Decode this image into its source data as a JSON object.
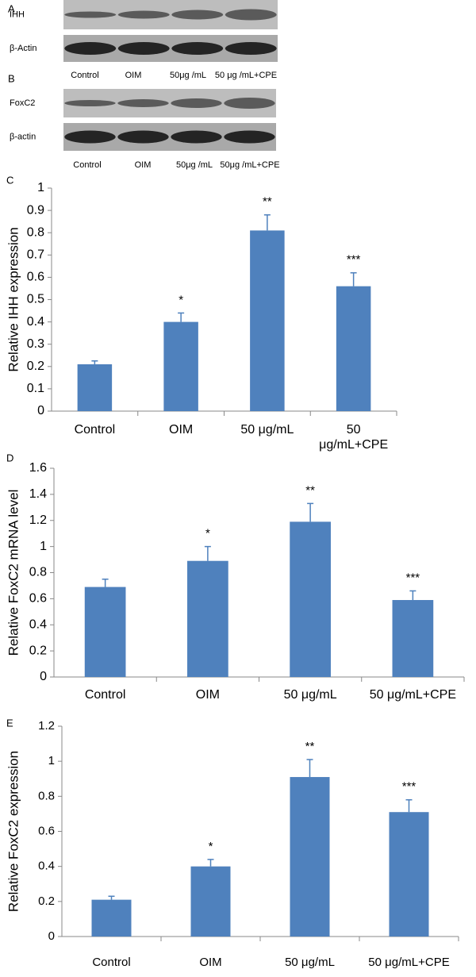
{
  "blots": [
    {
      "panel": "A",
      "rows": [
        "IHH",
        "β-Actin"
      ],
      "lanes": [
        "Control",
        "OIM",
        "50μg /mL",
        "50 μg /mL+CPE"
      ]
    },
    {
      "panel": "B",
      "rows": [
        "FoxC2",
        "β-actin"
      ],
      "lanes": [
        "Control",
        "OIM",
        "50μg /mL",
        "50μg /mL+CPE"
      ]
    }
  ],
  "chart_data": [
    {
      "type": "bar",
      "panel": "C",
      "y_label": "Relative IHH expression",
      "color": "#4f81bd",
      "categories": [
        "Control",
        "OIM",
        "50 μg/mL",
        "50 μg/mL+CPE"
      ],
      "values": [
        0.21,
        0.4,
        0.81,
        0.56
      ],
      "errors": [
        0.015,
        0.04,
        0.07,
        0.06
      ],
      "annotations": [
        null,
        "*",
        "**",
        "***"
      ],
      "ylim": [
        0,
        1
      ],
      "yticks": [
        0,
        0.1,
        0.2,
        0.3,
        0.4,
        0.5,
        0.6,
        0.7,
        0.8,
        0.9,
        1
      ]
    },
    {
      "type": "bar",
      "panel": "D",
      "y_label": "Relative FoxC2  mRNA level",
      "color": "#4f81bd",
      "categories": [
        "Control",
        "OIM",
        "50 μg/mL",
        "50 μg/mL+CPE"
      ],
      "values": [
        0.69,
        0.89,
        1.19,
        0.59
      ],
      "errors": [
        0.06,
        0.11,
        0.14,
        0.07
      ],
      "annotations": [
        null,
        "*",
        "**",
        "***"
      ],
      "ylim": [
        0,
        1.6
      ],
      "yticks": [
        0,
        0.2,
        0.4,
        0.6,
        0.8,
        1,
        1.2,
        1.4,
        1.6
      ]
    },
    {
      "type": "bar",
      "panel": "E",
      "y_label": "Relative FoxC2 expression",
      "color": "#4f81bd",
      "categories": [
        "Control",
        "OIM",
        "50 μg/mL",
        "50 μg/mL+CPE"
      ],
      "values": [
        0.21,
        0.4,
        0.91,
        0.71
      ],
      "errors": [
        0.02,
        0.04,
        0.1,
        0.07
      ],
      "annotations": [
        null,
        "*",
        "**",
        "***"
      ],
      "ylim": [
        0,
        1.2
      ],
      "yticks": [
        0,
        0.2,
        0.4,
        0.6,
        0.8,
        1,
        1.2
      ]
    }
  ]
}
